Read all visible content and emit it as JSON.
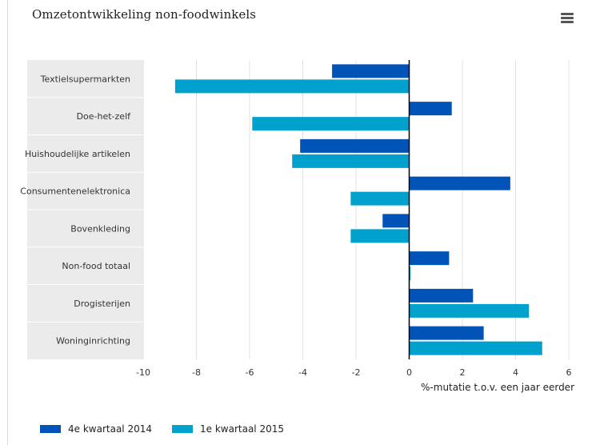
{
  "header": {
    "title": "Omzetontwikkeling non-foodwinkels",
    "menu_icon": "hamburger-menu-icon"
  },
  "colors": {
    "series_1": "#0054b8",
    "series_2": "#00a1cd",
    "category_band": "#ebebeb",
    "gridline": "#e0e0e0",
    "zero_line": "#000000"
  },
  "chart_data": {
    "type": "bar",
    "orientation": "horizontal",
    "title": "Omzetontwikkeling non-foodwinkels",
    "xlabel": "%-mutatie t.o.v. een jaar eerder",
    "ylabel": "",
    "xlim": [
      -10,
      6
    ],
    "x_ticks": [
      "-10",
      "-8",
      "-6",
      "-4",
      "-2",
      "0",
      "2",
      "4",
      "6"
    ],
    "grid": true,
    "legend_position": "bottom-left",
    "categories": [
      "Textielsupermarkten",
      "Doe-het-zelf",
      "Huishoudelijke artikelen",
      "Consumentenelektronica",
      "Bovenkleding",
      "Non-food totaal",
      "Drogisterijen",
      "Woninginrichting"
    ],
    "series": [
      {
        "name": "4e kwartaal 2014",
        "values": [
          -2.9,
          1.6,
          -4.1,
          3.8,
          -1.0,
          1.5,
          2.4,
          2.8
        ]
      },
      {
        "name": "1e kwartaal 2015",
        "values": [
          -8.8,
          -5.9,
          -4.4,
          -2.2,
          -2.2,
          0.05,
          4.5,
          5.0
        ]
      }
    ]
  }
}
